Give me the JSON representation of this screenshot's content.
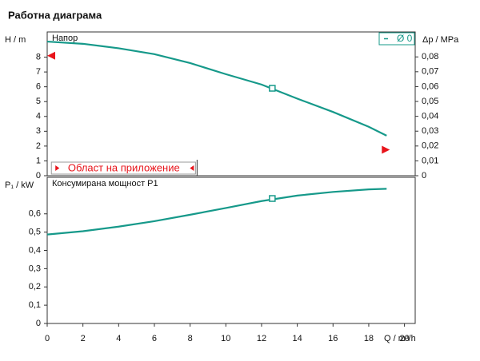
{
  "title": "Работна диаграма",
  "chart_data": [
    {
      "type": "line",
      "title": "Напор",
      "ylabel": "H / m",
      "y2label": "Δp / MPa",
      "x": [
        0,
        2,
        4,
        6,
        8,
        10,
        12,
        14,
        16,
        18,
        19
      ],
      "series": [
        {
          "name": "Ø 0",
          "color": "#16998a",
          "values": [
            9.05,
            8.9,
            8.6,
            8.2,
            7.6,
            6.85,
            6.15,
            5.2,
            4.3,
            3.3,
            2.7
          ]
        }
      ],
      "point": {
        "x": 12.6,
        "y": 5.9
      },
      "limits": [
        {
          "x": 0,
          "y": 8.1
        },
        {
          "x": 19,
          "y": 1.75
        }
      ],
      "application_range": [
        0.1,
        8.3
      ],
      "application_label": "Област на приложение",
      "xlim": [
        0,
        20.6
      ],
      "ylim": [
        0,
        9.7
      ],
      "yticks": [
        0,
        1,
        2,
        3,
        4,
        5,
        6,
        7,
        8
      ],
      "y2lim": [
        0,
        0.0968
      ],
      "y2ticks": [
        0,
        {
          "value": 0.01,
          "label": "0,01"
        },
        {
          "value": 0.02,
          "label": "0,02"
        },
        {
          "value": 0.03,
          "label": "0,03"
        },
        {
          "value": 0.04,
          "label": "0,04"
        },
        {
          "value": 0.05,
          "label": "0,05"
        },
        {
          "value": 0.06,
          "label": "0,06"
        },
        {
          "value": 0.07,
          "label": "0,07"
        },
        {
          "value": 0.08,
          "label": "0,08"
        }
      ]
    },
    {
      "type": "line",
      "title": "Консумирана мощност P1",
      "ylabel": "P₁ / kW",
      "xlabel": "Q / m³/h",
      "x": [
        0,
        2,
        4,
        6,
        8,
        10,
        12,
        14,
        16,
        18,
        19
      ],
      "series": [
        {
          "name": "P1",
          "color": "#16998a",
          "values": [
            0.487,
            0.505,
            0.53,
            0.56,
            0.595,
            0.632,
            0.67,
            0.7,
            0.72,
            0.734,
            0.737
          ]
        }
      ],
      "point": {
        "x": 12.6,
        "y": 0.684
      },
      "xlim": [
        0,
        20.6
      ],
      "ylim": [
        0,
        0.8
      ],
      "xticks": [
        0,
        2,
        4,
        6,
        8,
        10,
        12,
        14,
        16,
        18,
        20
      ],
      "yticks": [
        0,
        {
          "value": 0.1,
          "label": "0,1"
        },
        {
          "value": 0.2,
          "label": "0,2"
        },
        {
          "value": 0.3,
          "label": "0,3"
        },
        {
          "value": 0.4,
          "label": "0,4"
        },
        {
          "value": 0.5,
          "label": "0,5"
        },
        {
          "value": 0.6,
          "label": "0,6"
        }
      ]
    }
  ]
}
